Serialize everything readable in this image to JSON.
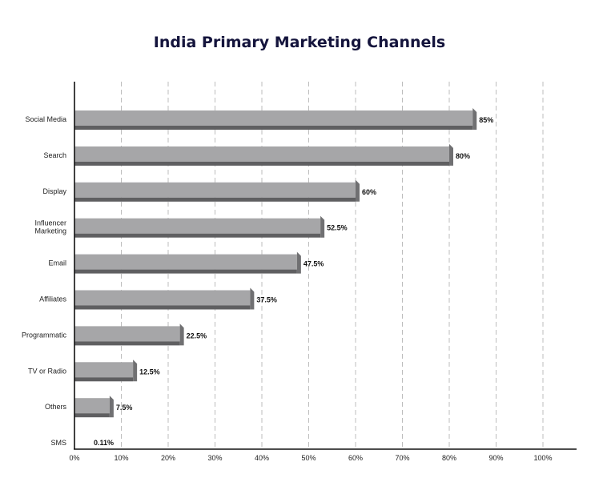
{
  "chart_data": {
    "type": "bar",
    "orientation": "horizontal",
    "title": "India Primary Marketing Channels",
    "xlabel": "",
    "ylabel": "",
    "xlim": [
      0,
      100
    ],
    "grid": true,
    "categories": [
      [
        "Social Media"
      ],
      [
        "Search"
      ],
      [
        "Display"
      ],
      [
        "Influencer",
        "Marketing"
      ],
      [
        "Email"
      ],
      [
        "Affiliates"
      ],
      [
        "Programmatic"
      ],
      [
        "TV or Radio"
      ],
      [
        "Others"
      ],
      [
        "SMS"
      ]
    ],
    "values": [
      85,
      80,
      60,
      52.5,
      47.5,
      37.5,
      22.5,
      12.5,
      7.5,
      0.11
    ],
    "value_labels": [
      "85%",
      "80%",
      "60%",
      "52.5%",
      "47.5%",
      "37.5%",
      "22.5%",
      "12.5%",
      "7.5%",
      "0.11%"
    ],
    "x_ticks": [
      0,
      10,
      20,
      30,
      40,
      50,
      60,
      70,
      80,
      90,
      100
    ],
    "x_tick_labels": [
      "0%",
      "10%",
      "20%",
      "30%",
      "40%",
      "50%",
      "60%",
      "70%",
      "80%",
      "90%",
      "100%"
    ],
    "colors": {
      "bar_face": "#a6a6a8",
      "bar_shadow": "#5f5f61",
      "bar_end": "#707072",
      "title": "#14143c"
    }
  }
}
